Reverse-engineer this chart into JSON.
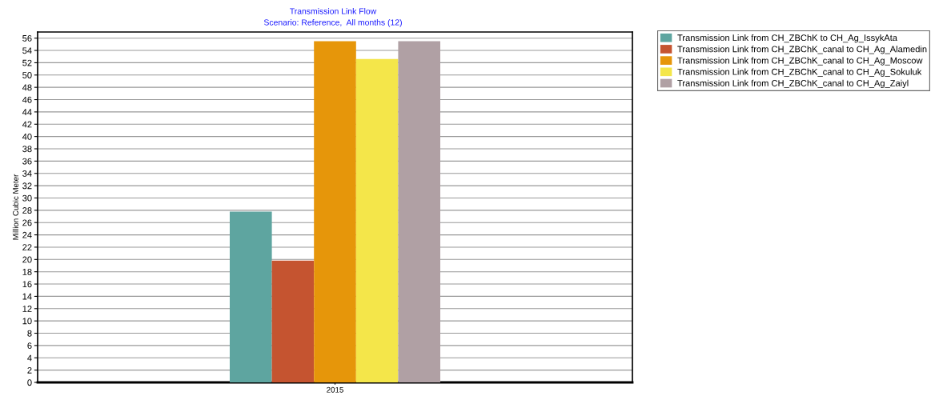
{
  "chart_data": {
    "type": "bar",
    "title": "Transmission Link Flow",
    "subtitle": "Scenario: Reference,  All months (12)",
    "ylabel": "Million Cubic Meter",
    "categories": [
      "2015"
    ],
    "series": [
      {
        "name": "Transmission Link from CH_ZBChK to CH_Ag_IssykAta",
        "color": "#5ea5a0",
        "values": [
          27.8
        ]
      },
      {
        "name": "Transmission Link from CH_ZBChK_canal to CH_Ag_Alamedin",
        "color": "#c55430",
        "values": [
          19.8
        ]
      },
      {
        "name": "Transmission Link from CH_ZBChK_canal to CH_Ag_Moscow",
        "color": "#e6960a",
        "values": [
          55.5
        ]
      },
      {
        "name": "Transmission Link from CH_ZBChK_canal to CH_Ag_Sokuluk",
        "color": "#f4e64a",
        "values": [
          52.6
        ]
      },
      {
        "name": "Transmission Link from CH_ZBChK_canal to CH_Ag_Zaiyl",
        "color": "#b0a0a4",
        "values": [
          55.5
        ]
      }
    ],
    "ylim": [
      0,
      57
    ],
    "yticks": [
      0,
      2,
      4,
      6,
      8,
      10,
      12,
      14,
      16,
      18,
      20,
      22,
      24,
      26,
      28,
      30,
      32,
      34,
      36,
      38,
      40,
      42,
      44,
      46,
      48,
      50,
      52,
      54,
      56
    ],
    "grid": "y",
    "legend": "top right"
  }
}
